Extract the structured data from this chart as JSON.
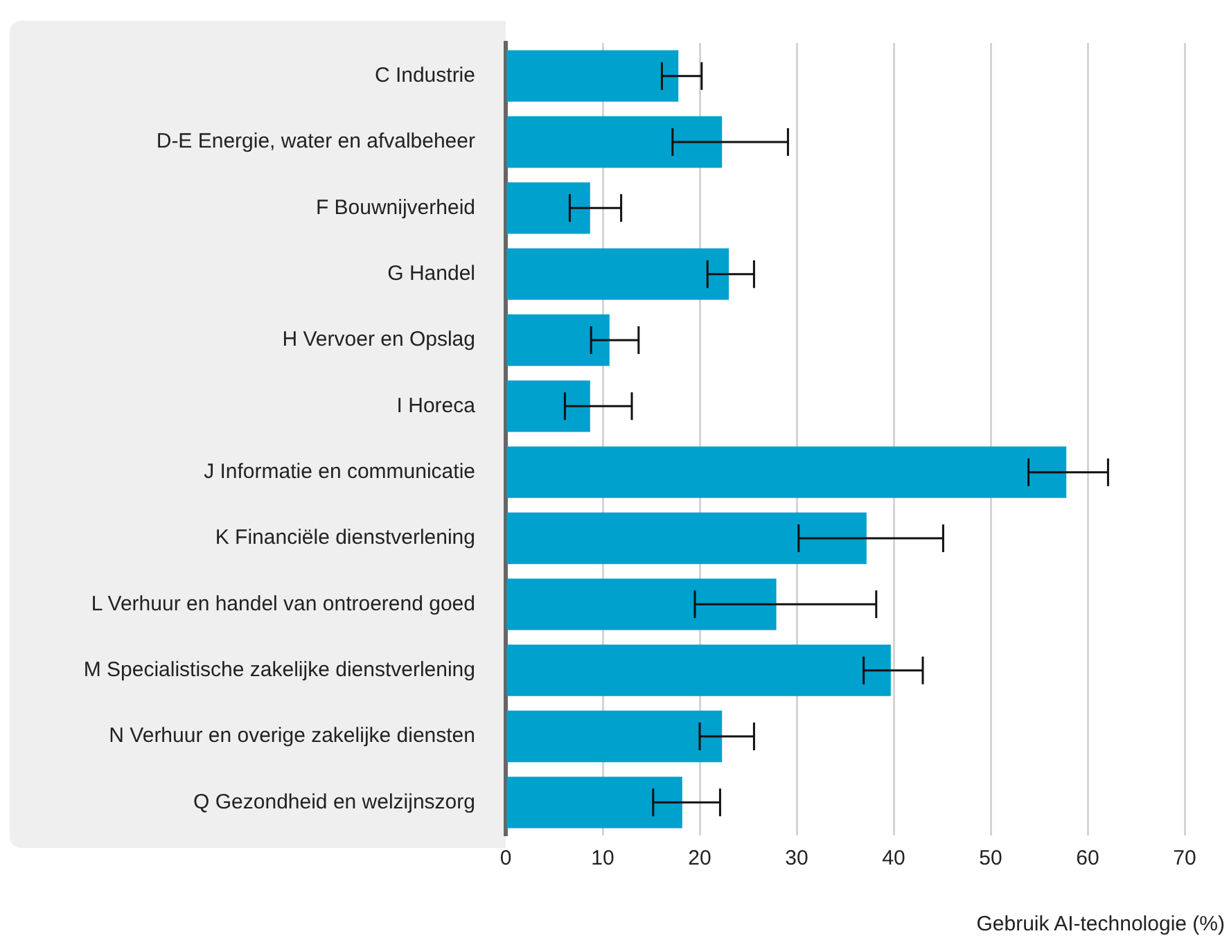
{
  "chart_data": {
    "type": "bar",
    "orientation": "horizontal",
    "xlabel": "Gebruik AI-technologie (%)",
    "categories": [
      "C Industrie",
      "D-E Energie, water en afvalbeheer",
      "F Bouwnijverheid",
      "G Handel",
      "H Vervoer en Opslag",
      "I Horeca",
      "J Informatie en communicatie",
      "K Financiële dienstverlening",
      "L Verhuur en handel van ontroerend goed",
      "M Specialistische zakelijke dienstverlening",
      "N Verhuur en overige zakelijke diensten",
      "Q Gezondheid en welzijnszorg"
    ],
    "values": [
      17.8,
      22.3,
      8.7,
      23.0,
      10.7,
      8.7,
      57.8,
      37.2,
      27.9,
      39.7,
      22.3,
      18.2
    ],
    "errors": [
      [
        16.1,
        20.2
      ],
      [
        17.2,
        29.1
      ],
      [
        6.6,
        11.9
      ],
      [
        20.8,
        25.6
      ],
      [
        8.8,
        13.7
      ],
      [
        6.1,
        13.0
      ],
      [
        53.9,
        62.1
      ],
      [
        30.2,
        45.1
      ],
      [
        19.5,
        38.2
      ],
      [
        36.9,
        43.0
      ],
      [
        20.0,
        25.6
      ],
      [
        15.2,
        22.1
      ]
    ],
    "color": "#00a1cd",
    "xlim": [
      0,
      70
    ],
    "xticks": [
      0,
      10,
      20,
      30,
      40,
      50,
      60,
      70
    ],
    "grid": "x",
    "legend": false
  }
}
